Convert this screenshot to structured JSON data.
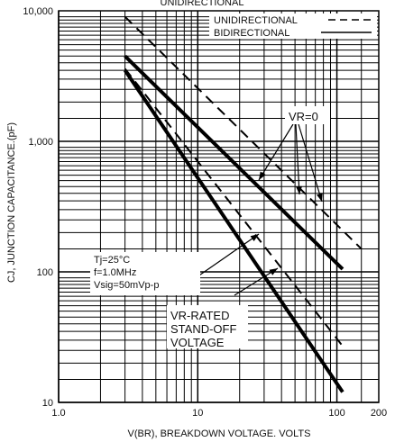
{
  "chart_data": {
    "type": "line",
    "title": "UNIDIRECTIONAL",
    "xlabel": "V(BR), BREAKDOWN VOLTAGE. VOLTS",
    "ylabel": "CJ, JUNCTION CAPACITANCE.(pF)",
    "x_scale": "log",
    "y_scale": "log",
    "xlim": [
      1,
      200
    ],
    "ylim": [
      10,
      10000
    ],
    "grid": true,
    "x_ticks": [
      {
        "value": 1,
        "label": "1.0"
      },
      {
        "value": 10,
        "label": "10"
      },
      {
        "value": 100,
        "label": "100"
      },
      {
        "value": 200,
        "label": "200"
      }
    ],
    "y_ticks": [
      {
        "value": 10,
        "label": "10"
      },
      {
        "value": 100,
        "label": "100"
      },
      {
        "value": 1000,
        "label": "1,000"
      },
      {
        "value": 10000,
        "label": "10,000"
      }
    ],
    "legend": {
      "placement": "top-right",
      "entries": [
        {
          "label": "UNIDIRECTIONAL",
          "style": "dashed"
        },
        {
          "label": "BIDIRECTIONAL",
          "style": "solid"
        }
      ]
    },
    "series": [
      {
        "group": "VR=0",
        "direction": "unidirectional",
        "style": "dashed",
        "x": [
          3,
          150
        ],
        "y": [
          9000,
          150
        ]
      },
      {
        "group": "VR=0",
        "direction": "bidirectional",
        "style": "solid",
        "x": [
          3,
          110
        ],
        "y": [
          4500,
          105
        ]
      },
      {
        "group": "VR-RATED STAND-OFF VOLTAGE",
        "direction": "unidirectional",
        "style": "dashed",
        "x": [
          3,
          110
        ],
        "y": [
          3600,
          27
        ]
      },
      {
        "group": "VR-RATED STAND-OFF VOLTAGE",
        "direction": "bidirectional",
        "style": "solid",
        "x": [
          3,
          110
        ],
        "y": [
          3500,
          12
        ]
      }
    ],
    "annotations": {
      "vr0_label": "VR=0",
      "rated_label": [
        "VR-RATED",
        "STAND-OFF",
        "VOLTAGE"
      ],
      "conditions": [
        "Tj=25°C",
        "f=1.0MHz",
        "Vsig=50mVp-p"
      ]
    }
  }
}
